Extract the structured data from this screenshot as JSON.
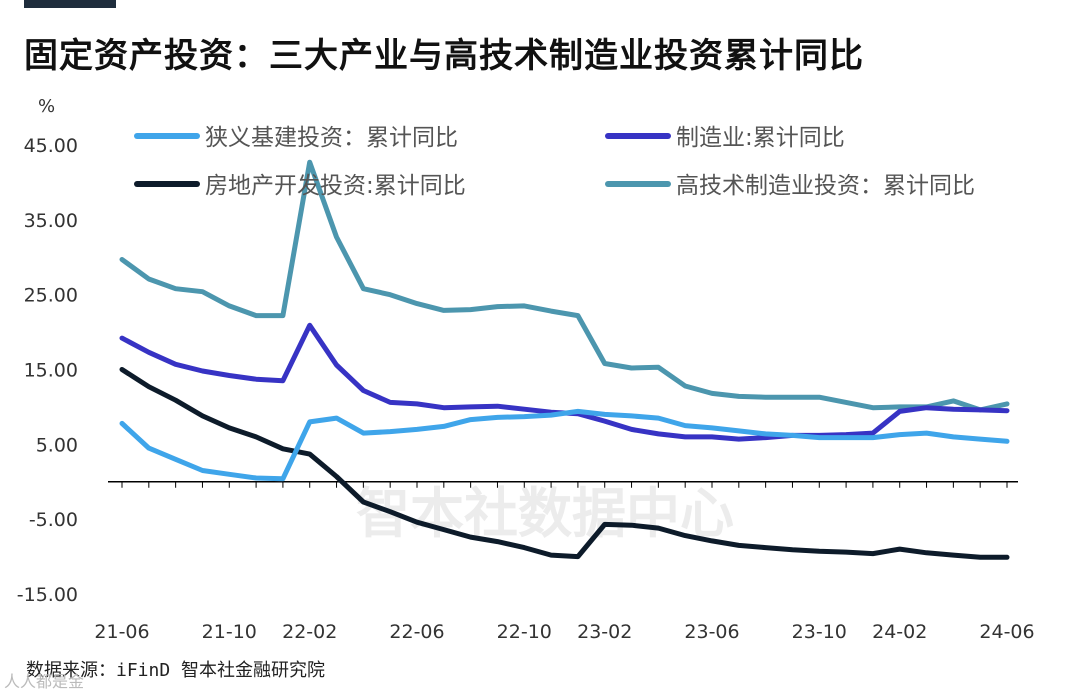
{
  "header": {
    "title": "固定资产投资：三大产业与高技术制造业投资累计同比"
  },
  "footer": {
    "source": "数据来源：iFinD 智本社金融研究院",
    "corner_watermark": "人人都是金"
  },
  "colors": {
    "s1": "#3fa5ea",
    "s2": "#3733c4",
    "s3": "#0d1b2a",
    "s4": "#4c96ae",
    "axis": "#000000",
    "tick_text": "#333333",
    "legend_text": "#555555",
    "watermark": "#ececec"
  },
  "chart_data": {
    "type": "line",
    "ylabel": "%",
    "ylim": [
      -15,
      45
    ],
    "y_ticks": [
      "45.00",
      "35.00",
      "25.00",
      "15.00",
      "5.00",
      "-5.00",
      "-15.00"
    ],
    "x": [
      "21-06",
      "21-07",
      "21-08",
      "21-09",
      "21-10",
      "21-11",
      "21-12",
      "22-02",
      "22-03",
      "22-04",
      "22-05",
      "22-06",
      "22-07",
      "22-08",
      "22-09",
      "22-10",
      "22-11",
      "22-12",
      "23-02",
      "23-03",
      "23-04",
      "23-05",
      "23-06",
      "23-07",
      "23-08",
      "23-09",
      "23-10",
      "23-11",
      "23-12",
      "24-02",
      "24-03",
      "24-04",
      "24-05",
      "24-06"
    ],
    "x_tick_labels": [
      "21-06",
      "21-10",
      "22-02",
      "22-06",
      "22-10",
      "23-02",
      "23-06",
      "23-10",
      "24-02",
      "24-06"
    ],
    "legend_placement": "top",
    "watermark": "智本社数据中心",
    "series": [
      {
        "name": "狭义基建投资：累计同比",
        "values": [
          7.8,
          4.5,
          3.0,
          1.5,
          1.0,
          0.5,
          0.4,
          8.0,
          8.5,
          6.5,
          6.7,
          7.0,
          7.4,
          8.3,
          8.6,
          8.7,
          8.9,
          9.4,
          9.0,
          8.8,
          8.5,
          7.5,
          7.2,
          6.8,
          6.4,
          6.2,
          5.9,
          5.9,
          5.9,
          6.3,
          6.5,
          6.0,
          5.7,
          5.4
        ]
      },
      {
        "name": "制造业:累计同比",
        "values": [
          19.2,
          17.3,
          15.7,
          14.8,
          14.2,
          13.7,
          13.5,
          20.9,
          15.6,
          12.2,
          10.6,
          10.4,
          9.9,
          10.0,
          10.1,
          9.7,
          9.3,
          9.1,
          8.1,
          7.0,
          6.4,
          6.0,
          6.0,
          5.7,
          5.9,
          6.2,
          6.2,
          6.3,
          6.5,
          9.4,
          9.9,
          9.7,
          9.6,
          9.5
        ]
      },
      {
        "name": "房地产开发投资:累计同比",
        "values": [
          15.0,
          12.7,
          10.9,
          8.8,
          7.2,
          6.0,
          4.4,
          3.7,
          0.7,
          -2.7,
          -4.0,
          -5.4,
          -6.4,
          -7.4,
          -8.0,
          -8.8,
          -9.8,
          -10.0,
          -5.7,
          -5.8,
          -6.2,
          -7.2,
          -7.9,
          -8.5,
          -8.8,
          -9.1,
          -9.3,
          -9.4,
          -9.6,
          -9.0,
          -9.5,
          -9.8,
          -10.1,
          -10.1
        ]
      },
      {
        "name": "高技术制造业投资：累计同比",
        "values": [
          29.7,
          27.1,
          25.8,
          25.4,
          23.5,
          22.2,
          22.2,
          42.7,
          32.7,
          25.8,
          25.0,
          23.8,
          22.9,
          23.0,
          23.4,
          23.5,
          22.8,
          22.2,
          15.8,
          15.2,
          15.3,
          12.8,
          11.8,
          11.4,
          11.3,
          11.3,
          11.3,
          10.6,
          9.9,
          10.0,
          10.0,
          10.8,
          9.6,
          10.4
        ]
      }
    ]
  }
}
